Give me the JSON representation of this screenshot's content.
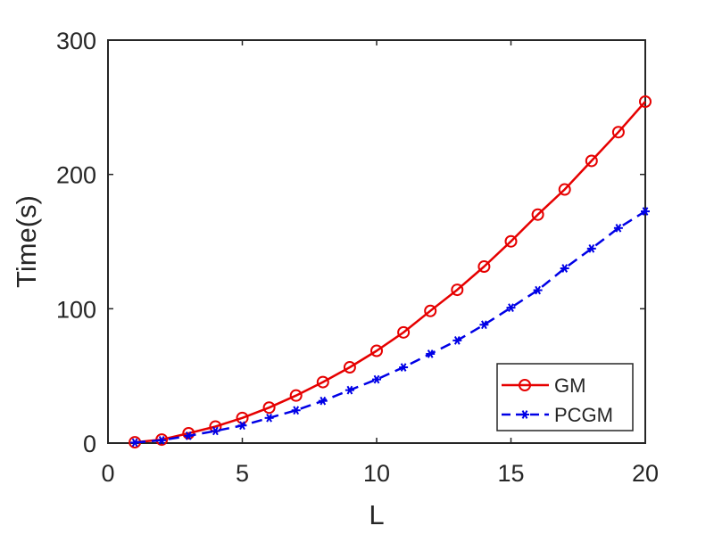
{
  "chart_data": {
    "type": "line",
    "title": "",
    "xlabel": "L",
    "ylabel": "Time(s)",
    "xlim": [
      0,
      20
    ],
    "ylim": [
      0,
      300
    ],
    "xticks": [
      0,
      5,
      10,
      15,
      20
    ],
    "yticks": [
      0,
      100,
      200,
      300
    ],
    "grid": false,
    "legend_location": "bottom-right",
    "x": [
      1,
      2,
      3,
      4,
      5,
      6,
      7,
      8,
      9,
      10,
      11,
      12,
      13,
      14,
      15,
      16,
      17,
      18,
      19,
      20
    ],
    "series": [
      {
        "name": "GM",
        "color": "#e60000",
        "line_style": "solid",
        "marker": "circle",
        "values": [
          0.6,
          2.6,
          7.3,
          12.3,
          18.7,
          26.4,
          35.4,
          45.4,
          56.4,
          68.7,
          82.4,
          98.4,
          114.1,
          131.4,
          150.2,
          170.1,
          188.8,
          210.1,
          231.5,
          254.2
        ]
      },
      {
        "name": "PCGM",
        "color": "#0000e6",
        "line_style": "dashed",
        "marker": "asterisk",
        "values": [
          0.4,
          2.1,
          5.4,
          9.0,
          13.1,
          18.7,
          24.4,
          31.4,
          39.4,
          47.4,
          56.4,
          66.4,
          76.4,
          88.1,
          100.8,
          113.8,
          130.1,
          144.8,
          160.1,
          172.5
        ]
      }
    ]
  }
}
